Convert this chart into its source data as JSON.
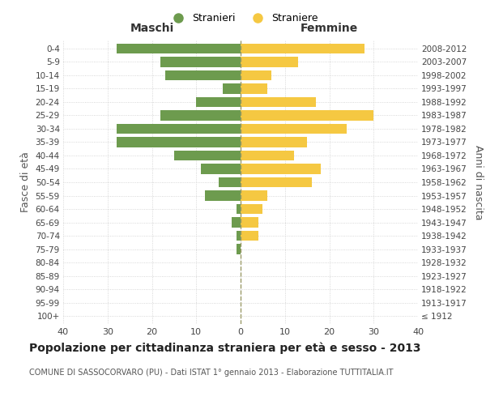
{
  "age_groups": [
    "100+",
    "95-99",
    "90-94",
    "85-89",
    "80-84",
    "75-79",
    "70-74",
    "65-69",
    "60-64",
    "55-59",
    "50-54",
    "45-49",
    "40-44",
    "35-39",
    "30-34",
    "25-29",
    "20-24",
    "15-19",
    "10-14",
    "5-9",
    "0-4"
  ],
  "birth_years": [
    "≤ 1912",
    "1913-1917",
    "1918-1922",
    "1923-1927",
    "1928-1932",
    "1933-1937",
    "1938-1942",
    "1943-1947",
    "1948-1952",
    "1953-1957",
    "1958-1962",
    "1963-1967",
    "1968-1972",
    "1973-1977",
    "1978-1982",
    "1983-1987",
    "1988-1992",
    "1993-1997",
    "1998-2002",
    "2003-2007",
    "2008-2012"
  ],
  "maschi": [
    0,
    0,
    0,
    0,
    0,
    1,
    1,
    2,
    1,
    8,
    5,
    9,
    15,
    28,
    28,
    18,
    10,
    4,
    17,
    18,
    28
  ],
  "femmine": [
    0,
    0,
    0,
    0,
    0,
    0,
    4,
    4,
    5,
    6,
    16,
    18,
    12,
    15,
    24,
    30,
    17,
    6,
    7,
    13,
    28
  ],
  "maschi_color": "#6d9b4e",
  "femmine_color": "#f5c842",
  "background_color": "#ffffff",
  "grid_color": "#cccccc",
  "title": "Popolazione per cittadinanza straniera per età e sesso - 2013",
  "subtitle": "COMUNE DI SASSOCORVARO (PU) - Dati ISTAT 1° gennaio 2013 - Elaborazione TUTTITALIA.IT",
  "ylabel_left": "Fasce di età",
  "ylabel_right": "Anni di nascita",
  "xlabel_left": "Maschi",
  "xlabel_right": "Femmine",
  "legend_maschi": "Stranieri",
  "legend_femmine": "Straniere",
  "xlim": 40,
  "bar_height": 0.75
}
